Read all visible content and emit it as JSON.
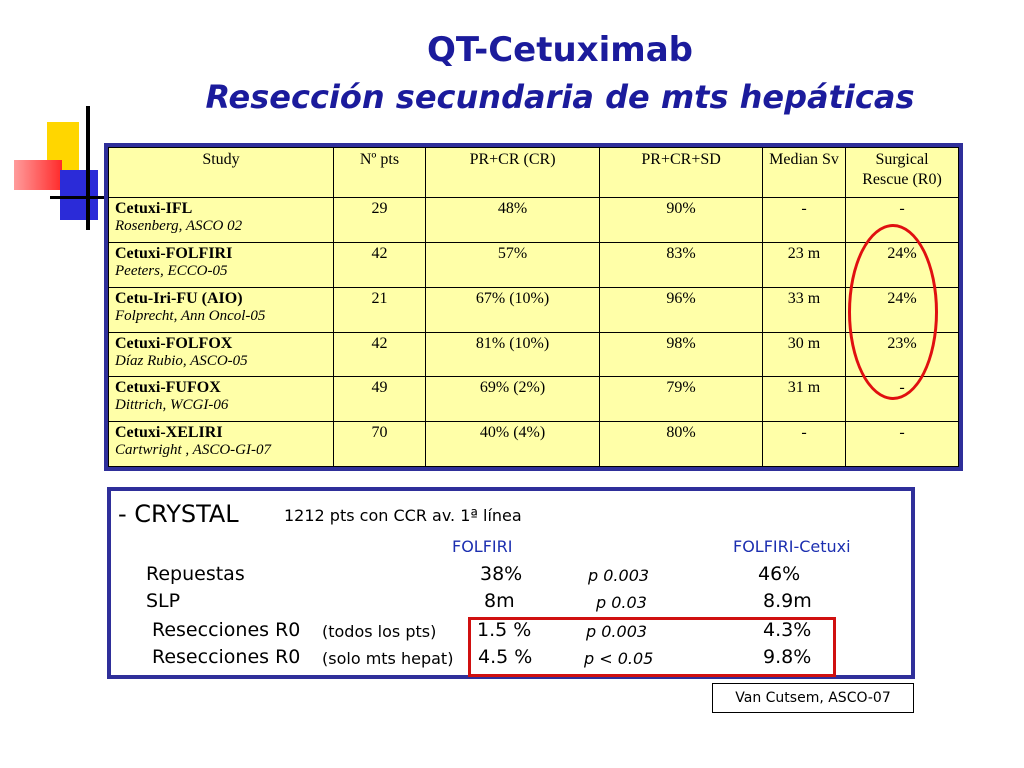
{
  "title": {
    "line1": "QT-Cetuximab",
    "line2": "Resección secundaria de mts hepáticas"
  },
  "table": {
    "headers": [
      "Study",
      "Nº pts",
      "PR+CR (CR)",
      "PR+CR+SD",
      "Median Sv",
      "Surgical Rescue (R0)"
    ],
    "rows": [
      {
        "study": "Cetuxi-IFL",
        "ref": "Rosenberg, ASCO 02",
        "pts": "29",
        "prcr": "48%",
        "prcrsd": "90%",
        "median": "-",
        "rescue": "-"
      },
      {
        "study": "Cetuxi-FOLFIRI",
        "ref": "Peeters, ECCO-05",
        "pts": "42",
        "prcr": "57%",
        "prcrsd": "83%",
        "median": "23 m",
        "rescue": "24%"
      },
      {
        "study": "Cetu-Iri-FU (AIO)",
        "ref": "Folprecht, Ann Oncol-05",
        "pts": "21",
        "prcr": "67%  (10%)",
        "prcrsd": "96%",
        "median": "33 m",
        "rescue": "24%"
      },
      {
        "study": "Cetuxi-FOLFOX",
        "ref": "Díaz Rubio, ASCO-05",
        "pts": "42",
        "prcr": "81%  (10%)",
        "prcrsd": "98%",
        "median": "30 m",
        "rescue": "23%"
      },
      {
        "study": "Cetuxi-FUFOX",
        "ref": "Dittrich, WCGI-06",
        "pts": "49",
        "prcr": "69%    (2%)",
        "prcrsd": "79%",
        "median": "31 m",
        "rescue": "-"
      },
      {
        "study": "Cetuxi-XELIRI",
        "ref": "Cartwright , ASCO-GI-07",
        "pts": "70",
        "prcr": "40%   (4%)",
        "prcrsd": "80%",
        "median": "-",
        "rescue": "-"
      }
    ]
  },
  "crystal": {
    "heading": "- CRYSTAL",
    "subheading": "1212 pts con CCR av. 1ª línea",
    "col1": "FOLFIRI",
    "col2": "FOLFIRI-Cetuxi",
    "rows": [
      {
        "label": "Repuestas",
        "note": "",
        "v1": "38%",
        "p": "p 0.003",
        "v2": "46%"
      },
      {
        "label": "SLP",
        "note": "",
        "v1": "8m",
        "p": "p 0.03",
        "v2": "8.9m"
      },
      {
        "label": "Resecciones R0",
        "note": "(todos los pts)",
        "v1": "1.5 %",
        "p": "p 0.003",
        "v2": "4.3%"
      },
      {
        "label": "Resecciones R0",
        "note": "(solo mts hepat)",
        "v1": "4.5 %",
        "p": "p < 0.05",
        "v2": "9.8%"
      }
    ]
  },
  "citation": "Van Cutsem, ASCO-07"
}
